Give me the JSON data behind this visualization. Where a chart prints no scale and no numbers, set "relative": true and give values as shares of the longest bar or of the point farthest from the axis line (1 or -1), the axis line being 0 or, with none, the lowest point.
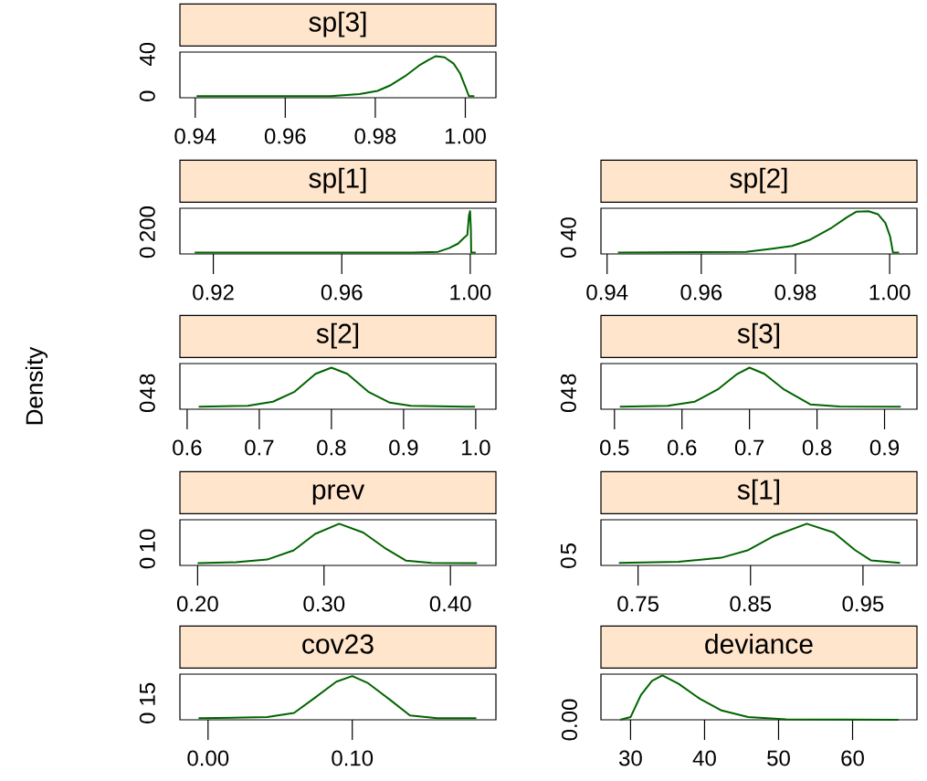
{
  "chart_data": [
    {
      "type": "line",
      "title": "sp[3]",
      "color": "#006400",
      "xlim": [
        0.9366,
        1.0068
      ],
      "ylim": [
        -1.5,
        42
      ],
      "xticks": [
        0.94,
        0.96,
        0.98,
        {
          "value": 1,
          "label": "1.00"
        }
      ],
      "yticks": [
        0,
        40
      ],
      "x": [
        0.9403,
        0.95,
        0.96,
        0.97,
        0.9765,
        0.9805,
        0.9832,
        0.9866,
        0.99,
        0.992,
        0.9934,
        0.9954,
        0.9974,
        0.9988,
        1.0001,
        1.0008,
        1.002
      ],
      "values": [
        0,
        0,
        0,
        0,
        2,
        5,
        10,
        19,
        30,
        35,
        38,
        37,
        31,
        22,
        8,
        0,
        0
      ]
    },
    {
      "type": "line",
      "title": "sp[1]",
      "color": "#006400",
      "xlim": [
        0.9096,
        1.008
      ],
      "ylim": [
        -10,
        310
      ],
      "xticks": [
        0.92,
        0.96,
        {
          "value": 1,
          "label": "1.00"
        }
      ],
      "yticks": [
        0,
        200
      ],
      "x": [
        0.9142,
        0.95,
        0.982,
        0.99,
        0.9934,
        0.9962,
        0.9981,
        0.9991,
        0.9996,
        0.99995,
        1.0002,
        1.0003,
        1.0017
      ],
      "values": [
        0,
        0,
        0,
        5,
        31,
        62,
        103,
        124,
        259,
        290,
        166,
        0,
        0
      ]
    },
    {
      "type": "line",
      "title": "sp[2]",
      "color": "#006400",
      "xlim": [
        0.9387,
        1.0058
      ],
      "ylim": [
        -2.5,
        75
      ],
      "xticks": [
        0.94,
        0.96,
        0.98,
        {
          "value": 1,
          "label": "1.00"
        }
      ],
      "yticks": [
        0,
        40
      ],
      "x": [
        0.9423,
        0.9695,
        0.9747,
        0.9793,
        0.9832,
        0.9877,
        0.991,
        0.9929,
        0.9955,
        0.9975,
        0.9991,
        1.0001,
        1.0007,
        1.002
      ],
      "values": [
        0,
        1,
        6,
        11,
        22,
        42,
        60,
        69,
        70,
        65,
        50,
        27,
        0,
        0
      ]
    },
    {
      "type": "line",
      "title": "s[2]",
      "ylabel": "Density",
      "color": "#006400",
      "xlim": [
        0.59,
        1.028
      ],
      "ylim": [
        -0.7,
        12.6
      ],
      "xticks": [
        0.6,
        0.7,
        0.8,
        0.9,
        {
          "value": 1,
          "label": "1.0"
        }
      ],
      "yticks": [
        0,
        4,
        8
      ],
      "x": [
        0.616,
        0.684,
        0.719,
        0.749,
        0.778,
        0.8,
        0.822,
        0.851,
        0.881,
        0.91,
        0.999
      ],
      "values": [
        0,
        0.3,
        1.5,
        4.4,
        9.6,
        11.4,
        9.6,
        4.4,
        1.2,
        0.3,
        0
      ]
    },
    {
      "type": "line",
      "title": "s[3]",
      "color": "#006400",
      "xlim": [
        0.48,
        0.948
      ],
      "ylim": [
        -0.7,
        12.6
      ],
      "xticks": [
        0.5,
        0.6,
        0.7,
        0.8,
        0.9
      ],
      "yticks": [
        0,
        4,
        8
      ],
      "x": [
        0.508,
        0.579,
        0.619,
        0.654,
        0.682,
        0.7,
        0.722,
        0.75,
        0.79,
        0.833,
        0.924
      ],
      "values": [
        0,
        0.3,
        1.5,
        5.2,
        9.6,
        11.4,
        9.6,
        5.2,
        0.7,
        0.1,
        0
      ]
    },
    {
      "type": "line",
      "title": "prev",
      "color": "#006400",
      "xlim": [
        0.186,
        0.436
      ],
      "ylim": [
        -1,
        19.3
      ],
      "xticks": [
        {
          "value": 0.2,
          "label": "0.20"
        },
        {
          "value": 0.3,
          "label": "0.30"
        },
        {
          "value": 0.4,
          "label": "0.40"
        }
      ],
      "yticks": [
        0,
        10
      ],
      "x": [
        0.2,
        0.23,
        0.255,
        0.276,
        0.293,
        0.312,
        0.331,
        0.348,
        0.365,
        0.385,
        0.421
      ],
      "values": [
        0,
        0.4,
        1.6,
        5.7,
        13,
        17.5,
        13.6,
        6.8,
        1.1,
        0.1,
        0
      ]
    },
    {
      "type": "line",
      "title": "s[1]",
      "color": "#006400",
      "xlim": [
        0.717,
        0.998
      ],
      "ylim": [
        -0.9,
        15.2
      ],
      "xticks": [
        0.75,
        0.85,
        0.95
      ],
      "yticks": [
        0,
        5
      ],
      "x": [
        0.733,
        0.786,
        0.824,
        0.848,
        0.871,
        0.9,
        0.924,
        0.943,
        0.957,
        0.983
      ],
      "values": [
        0,
        0.4,
        1.8,
        4.5,
        9.5,
        13.8,
        10.7,
        4.5,
        0.9,
        0
      ]
    },
    {
      "type": "line",
      "title": "cov23",
      "color": "#006400",
      "xlim": [
        -0.0195,
        0.1996
      ],
      "ylim": [
        -1,
        27.7
      ],
      "xticks": [
        {
          "value": 0,
          "label": "0.00"
        },
        {
          "value": 0.1,
          "label": "0.10"
        }
      ],
      "yticks": [
        0,
        15
      ],
      "x": [
        -0.0066,
        0.041,
        0.0596,
        0.0743,
        0.089,
        0.1,
        0.111,
        0.126,
        0.14,
        0.159,
        0.186
      ],
      "values": [
        0,
        0.7,
        3.3,
        13,
        23,
        26.5,
        22,
        11.7,
        1.7,
        0,
        0
      ]
    },
    {
      "type": "line",
      "title": "deviance",
      "color": "#006400",
      "xlim": [
        26,
        68.7
      ],
      "relative": true,
      "annotations": [
        "0.00"
      ],
      "xticks": [
        30,
        40,
        50,
        60
      ],
      "x": [
        28.6,
        30,
        31.4,
        32.9,
        34.3,
        36.5,
        39.4,
        42.3,
        45.9,
        51,
        66.2
      ],
      "values": [
        0,
        0.06,
        0.56,
        0.88,
        1,
        0.81,
        0.47,
        0.21,
        0.06,
        0.01,
        0
      ]
    }
  ]
}
